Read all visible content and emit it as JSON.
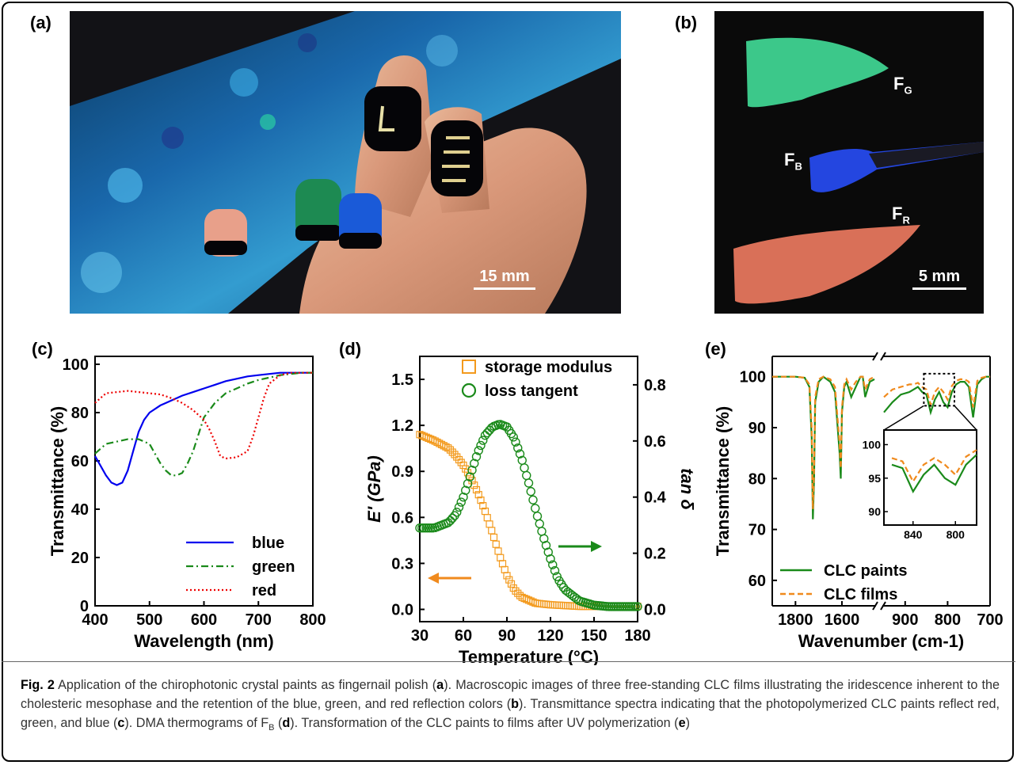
{
  "panels": {
    "a": {
      "label": "(a)",
      "scale": "15 mm"
    },
    "b": {
      "label": "(b)",
      "scale": "5 mm",
      "films": {
        "green": "G",
        "blue": "B",
        "red": "R"
      }
    },
    "c": {
      "label": "(c)"
    },
    "d": {
      "label": "(d)"
    },
    "e": {
      "label": "(e)"
    }
  },
  "caption": {
    "fig": "Fig. 2",
    "text": [
      " Application of the chirophotonic crystal paints as fingernail polish (",
      "a",
      "). Macroscopic images of three free-standing CLC films illustrating the iridescence inherent to the cholesteric mesophase and the retention of the blue, green, and red reflection colors (",
      "b",
      "). Transmittance spectra indicating that the photopolymerized CLC paints reflect red, green, and blue (",
      "c",
      "). DMA thermograms of F",
      "B",
      " (",
      "d",
      "). Transformation of the CLC paints to films after UV polymerization (",
      "e",
      ")"
    ]
  },
  "chart_data": [
    {
      "id": "c",
      "type": "line",
      "xlabel": "Wavelength (nm)",
      "ylabel": "Transmittance (%)",
      "xlim": [
        400,
        800
      ],
      "ylim": [
        0,
        100
      ],
      "xticks": [
        400,
        500,
        600,
        700,
        800
      ],
      "yticks": [
        0,
        20,
        40,
        60,
        80,
        100
      ],
      "legend_position": "bottom-right",
      "series": [
        {
          "name": "blue",
          "color": "#0000ee",
          "style": "solid",
          "x": [
            400,
            410,
            420,
            430,
            440,
            450,
            460,
            470,
            480,
            490,
            500,
            520,
            540,
            560,
            580,
            600,
            620,
            640,
            660,
            680,
            700,
            720,
            740,
            760,
            780,
            800
          ],
          "y": [
            62,
            58,
            54,
            51,
            50,
            51,
            56,
            64,
            72,
            77,
            80,
            83,
            85,
            87,
            88.5,
            90,
            91.5,
            93,
            94,
            95,
            95.5,
            96,
            96.5,
            96.5,
            96.5,
            96.5
          ]
        },
        {
          "name": "green",
          "color": "#1a8a1a",
          "style": "dashdot",
          "x": [
            400,
            420,
            440,
            460,
            480,
            500,
            510,
            520,
            530,
            540,
            550,
            560,
            570,
            580,
            590,
            600,
            620,
            640,
            660,
            680,
            700,
            720,
            740,
            760,
            780,
            800
          ],
          "y": [
            63,
            67,
            68,
            69,
            69,
            67,
            63,
            59,
            56,
            54,
            54,
            55,
            59,
            64,
            71,
            78,
            84,
            88,
            90,
            92,
            93.5,
            94.5,
            95.5,
            96,
            96.5,
            96.5
          ]
        },
        {
          "name": "red",
          "color": "#ee0000",
          "style": "dotted",
          "x": [
            400,
            420,
            440,
            460,
            480,
            500,
            520,
            540,
            560,
            580,
            600,
            610,
            620,
            630,
            640,
            660,
            680,
            690,
            700,
            710,
            720,
            740,
            760,
            780,
            800
          ],
          "y": [
            84,
            88,
            88.5,
            89,
            88.5,
            88,
            87.5,
            86,
            84,
            81,
            77,
            73,
            68,
            62,
            61,
            61.5,
            64,
            70,
            78,
            86,
            92,
            95.5,
            96.5,
            96.5,
            96.5
          ]
        }
      ]
    },
    {
      "id": "d",
      "type": "scatter",
      "xlabel": "Temperature (°C)",
      "ylabel": "E' (GPa)",
      "y2label": "tan δ",
      "xlim": [
        30,
        180
      ],
      "ylim": [
        -0.08,
        1.65
      ],
      "y2lim": [
        -0.0437,
        0.9013
      ],
      "xticks": [
        30,
        60,
        90,
        120,
        150,
        180
      ],
      "yticks": [
        0.0,
        0.3,
        0.6,
        0.9,
        1.2,
        1.5
      ],
      "y2ticks": [
        0.0,
        0.2,
        0.4,
        0.6,
        0.8
      ],
      "legend_position": "top-left",
      "series": [
        {
          "name": "storage modulus",
          "marker": "square",
          "color": "#f39a1d",
          "axis": "left",
          "x": [
            30,
            40,
            50,
            55,
            60,
            65,
            70,
            75,
            80,
            85,
            90,
            95,
            100,
            110,
            120,
            140,
            160,
            180
          ],
          "y": [
            1.14,
            1.1,
            1.05,
            1.0,
            0.94,
            0.86,
            0.76,
            0.64,
            0.5,
            0.35,
            0.22,
            0.13,
            0.08,
            0.04,
            0.03,
            0.02,
            0.02,
            0.02
          ]
        },
        {
          "name": "loss tangent",
          "marker": "circle",
          "color": "#1a8a1a",
          "axis": "right",
          "x": [
            30,
            40,
            50,
            55,
            60,
            65,
            70,
            75,
            80,
            85,
            90,
            95,
            100,
            105,
            110,
            115,
            120,
            125,
            130,
            140,
            150,
            160,
            170,
            180
          ],
          "y": [
            0.29,
            0.29,
            0.31,
            0.34,
            0.4,
            0.48,
            0.56,
            0.62,
            0.65,
            0.66,
            0.65,
            0.61,
            0.54,
            0.45,
            0.35,
            0.26,
            0.18,
            0.11,
            0.07,
            0.03,
            0.015,
            0.01,
            0.01,
            0.01
          ]
        }
      ]
    },
    {
      "id": "e",
      "type": "line",
      "xlabel": "Wavenumber (cm-1)",
      "ylabel": "Transmittance (%)",
      "axis_break": true,
      "xlim_segments": [
        [
          1900,
          1460
        ],
        [
          950,
          700
        ]
      ],
      "ylim": [
        55,
        104
      ],
      "xticks": [
        1800,
        1600,
        900,
        800,
        700
      ],
      "yticks": [
        60,
        70,
        80,
        90,
        100
      ],
      "legend_position": "bottom-left",
      "series": [
        {
          "name": "CLC paints",
          "color": "#1a8a1a",
          "style": "solid",
          "x": [
            1900,
            1800,
            1760,
            1740,
            1730,
            1725,
            1720,
            1715,
            1700,
            1680,
            1650,
            1630,
            1610,
            1605,
            1600,
            1590,
            1580,
            1560,
            1540,
            1520,
            1510,
            1500,
            1480,
            1460
          ],
          "y": [
            100,
            100,
            99.8,
            98,
            88,
            72,
            80,
            95,
            99,
            100,
            99,
            97,
            85,
            80,
            93,
            98,
            99,
            96,
            98,
            100,
            100,
            96,
            99,
            99.5
          ],
          "x2": [
            950,
            930,
            910,
            890,
            880,
            870,
            860,
            850,
            840,
            830,
            820,
            810,
            800,
            790,
            780,
            770,
            760,
            750,
            740,
            730,
            720,
            710,
            700
          ],
          "y2": [
            93,
            95,
            96.5,
            97,
            97.5,
            98,
            97,
            96.5,
            93,
            95.5,
            97,
            95,
            94,
            97,
            98.5,
            99,
            99,
            98,
            92,
            98.5,
            99.5,
            100,
            100
          ]
        },
        {
          "name": "CLC films",
          "color": "#f08a1d",
          "style": "dashed",
          "x": [
            1900,
            1800,
            1760,
            1740,
            1730,
            1725,
            1720,
            1715,
            1700,
            1680,
            1650,
            1630,
            1610,
            1605,
            1600,
            1590,
            1580,
            1560,
            1540,
            1520,
            1510,
            1500,
            1480,
            1460
          ],
          "y": [
            100,
            100,
            99.8,
            98.5,
            90,
            74,
            82,
            96,
            99.5,
            100,
            99.5,
            98,
            87,
            82,
            94,
            98.5,
            99.5,
            97.5,
            99,
            100,
            100,
            97.5,
            99.5,
            100
          ],
          "x2": [
            950,
            930,
            910,
            890,
            880,
            870,
            860,
            850,
            840,
            830,
            820,
            810,
            800,
            790,
            780,
            770,
            760,
            750,
            740,
            730,
            720,
            710,
            700
          ],
          "y2": [
            96,
            97.5,
            98,
            98.5,
            98.5,
            98.8,
            98,
            97.5,
            94.5,
            97,
            98,
            97,
            95.5,
            98.2,
            99.2,
            99.5,
            99.5,
            99,
            94,
            99.2,
            99.8,
            100,
            100
          ]
        }
      ],
      "inset": {
        "xlim": [
          860,
          780
        ],
        "ylim": [
          88,
          101
        ],
        "xticks": [
          840,
          800
        ],
        "yticks": [
          90,
          95,
          100
        ]
      }
    }
  ]
}
